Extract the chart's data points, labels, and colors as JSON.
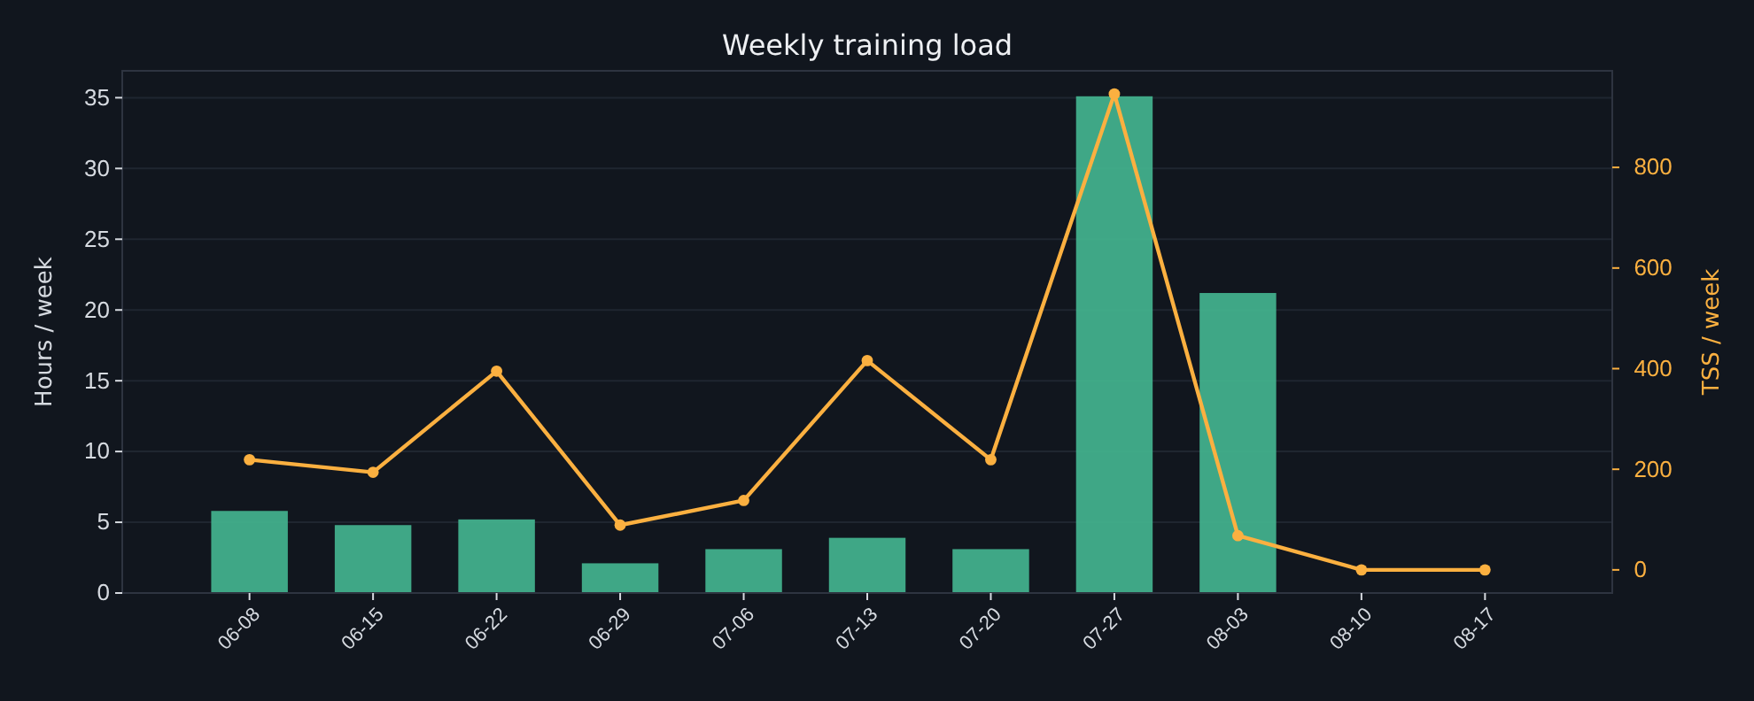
{
  "chart_data": {
    "type": "bar",
    "title": "Weekly training load",
    "ylabel": "Hours / week",
    "y2label": "TSS / week",
    "categories": [
      "06-08",
      "06-15",
      "06-22",
      "06-29",
      "07-06",
      "07-13",
      "07-20",
      "07-27",
      "08-03",
      "08-10",
      "08-17"
    ],
    "series": [
      {
        "color": "#43b48f",
        "values": [
          5.8,
          4.8,
          5.2,
          2.1,
          3.1,
          3.9,
          3.1,
          35.1,
          21.2,
          0,
          0
        ]
      },
      {
        "type": "line",
        "axis": "y2",
        "color": "#fbb040",
        "marker": "circle",
        "line_style": "solid",
        "values": [
          219,
          194,
          395,
          89,
          138,
          416,
          219,
          946,
          68,
          0,
          0
        ]
      }
    ],
    "ylim": [
      0,
      36.9
    ],
    "yticks": [
      0,
      5,
      10,
      15,
      20,
      25,
      30,
      35
    ],
    "y2lim": [
      -46,
      992
    ],
    "y2ticks": [
      0,
      200,
      400,
      600,
      800
    ],
    "grid": "y"
  }
}
